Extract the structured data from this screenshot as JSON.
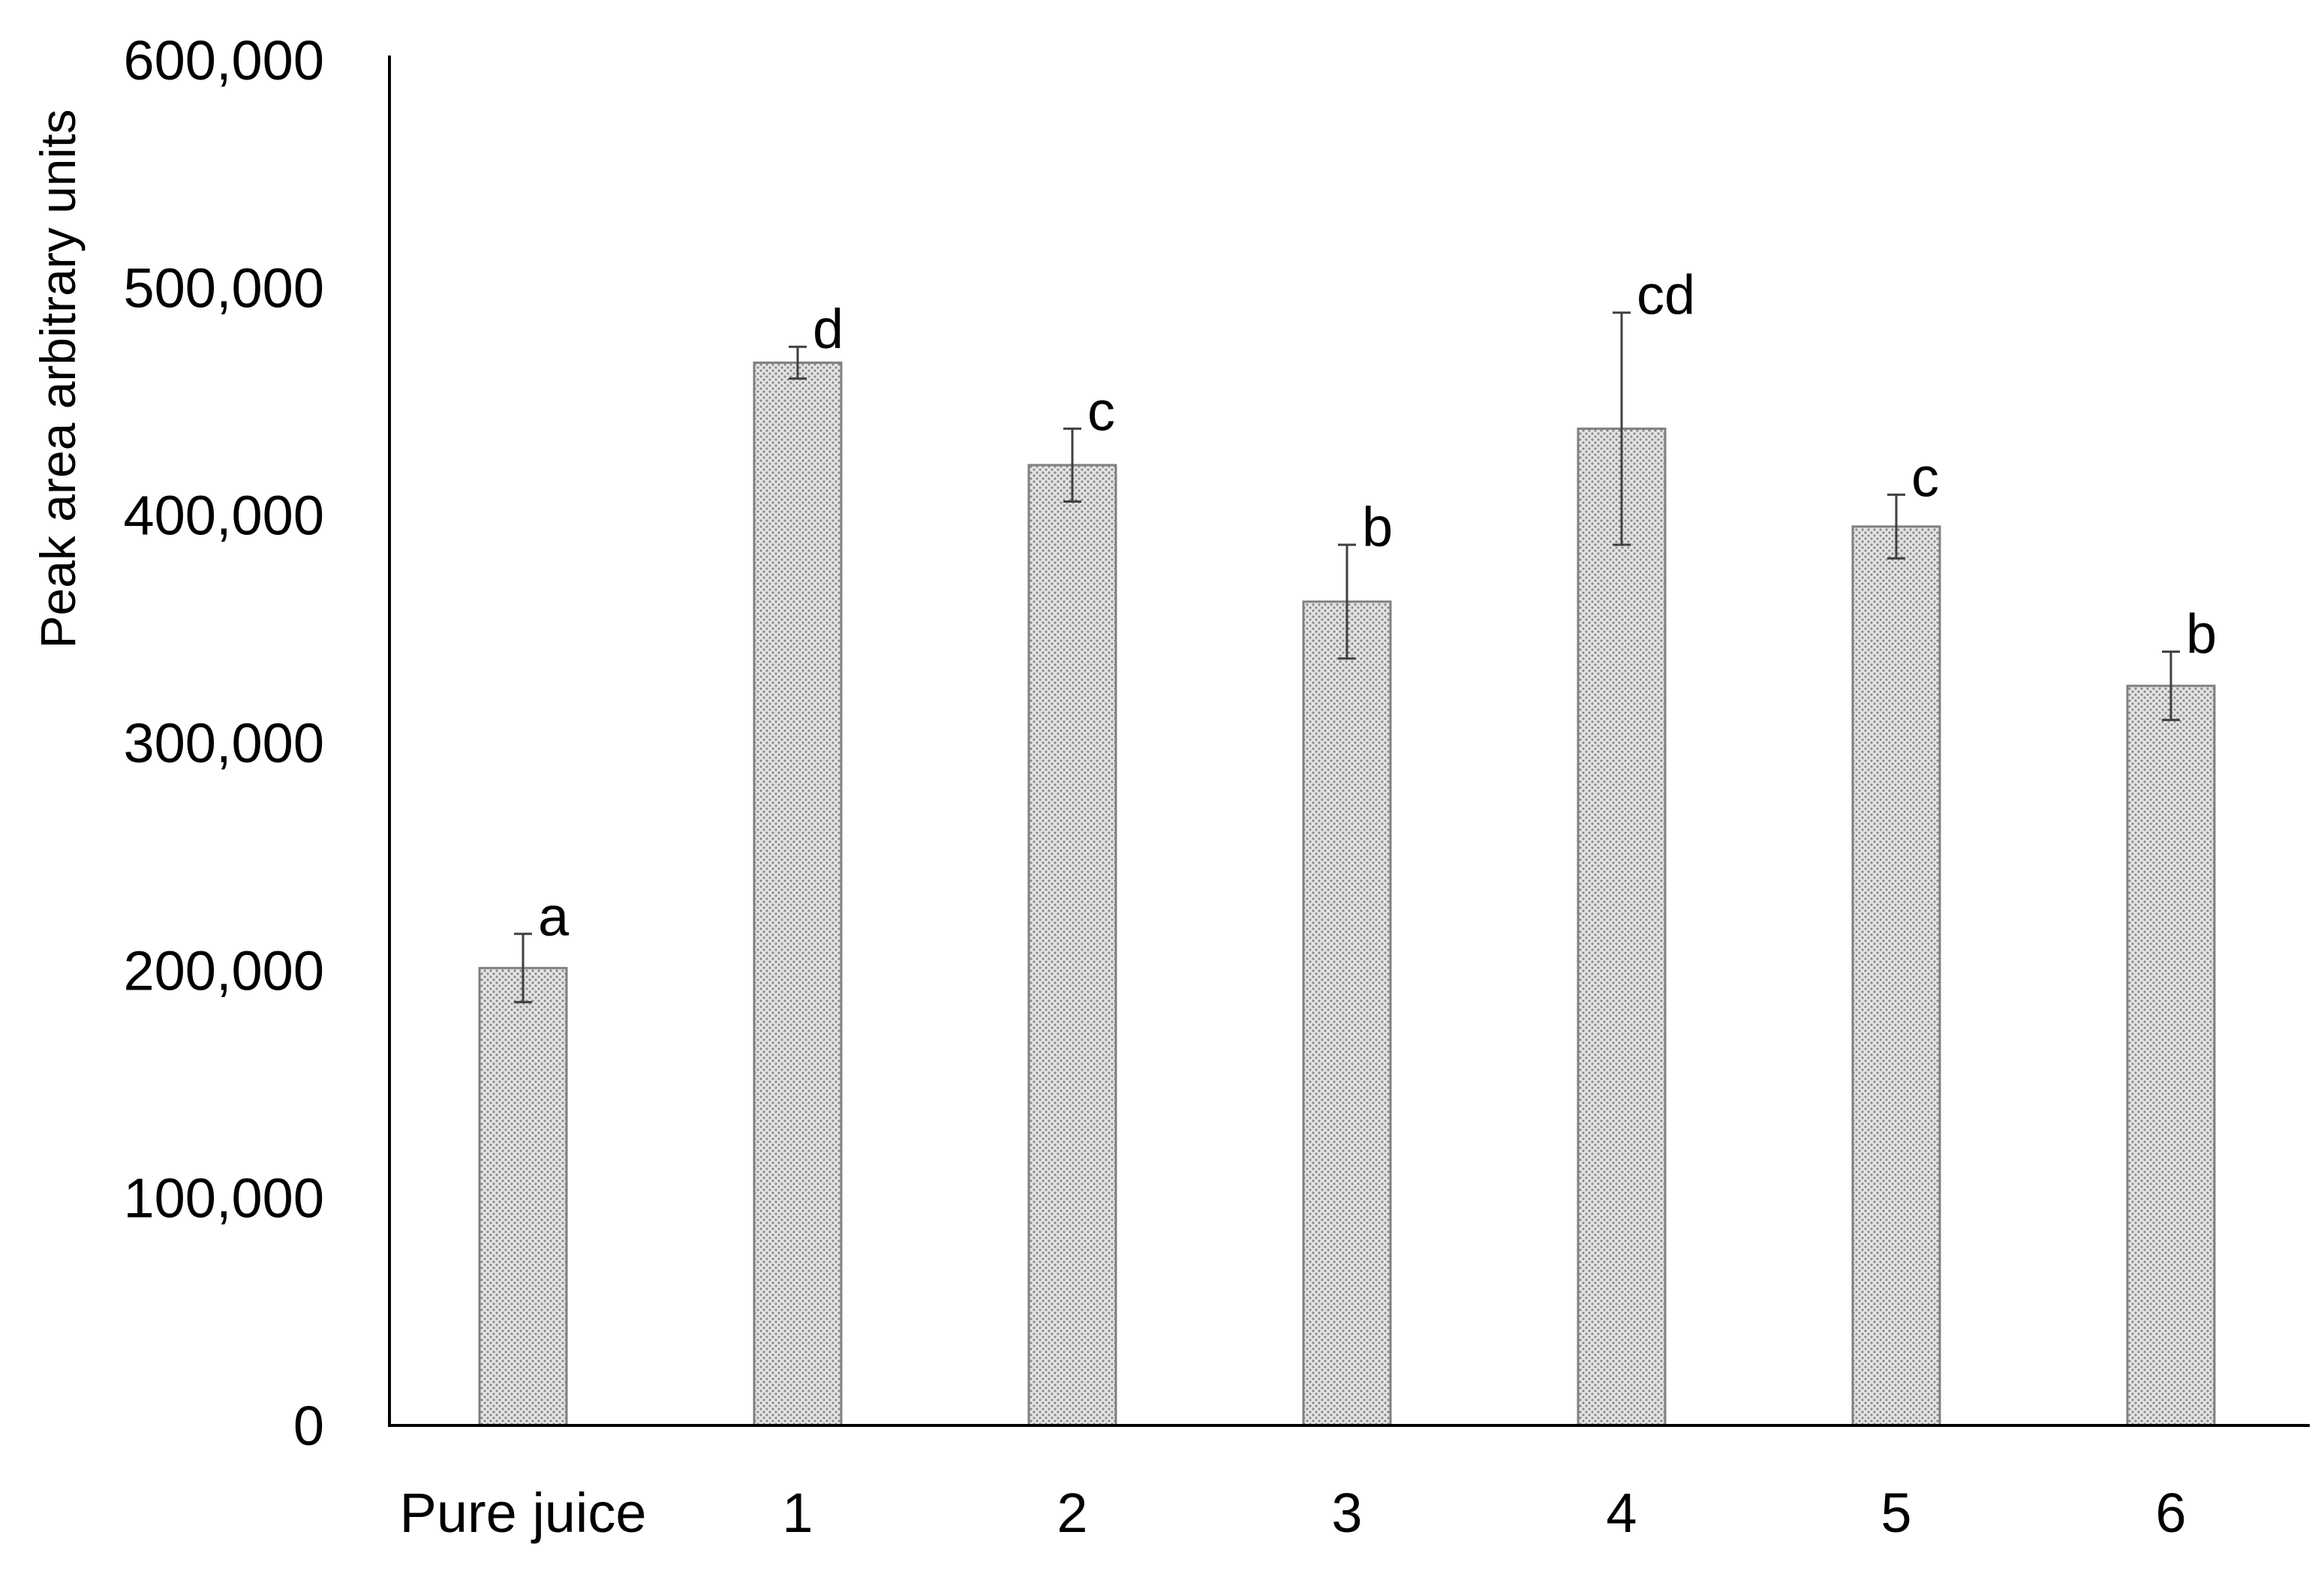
{
  "chart_data": {
    "type": "bar",
    "title": "",
    "xlabel": "",
    "ylabel": "Peak area arbitrary units",
    "ylim": [
      0,
      600000
    ],
    "yticks": [
      0,
      100000,
      200000,
      300000,
      400000,
      500000,
      600000
    ],
    "ytick_labels": [
      "0",
      "100,000",
      "200,000",
      "300,000",
      "400,000",
      "500,000",
      "600,000"
    ],
    "categories": [
      "Pure juice",
      "1",
      "2",
      "3",
      "4",
      "5",
      "6"
    ],
    "values": [
      201000,
      467000,
      422000,
      362000,
      438000,
      395000,
      325000
    ],
    "errors": [
      15000,
      7000,
      16000,
      25000,
      51000,
      14000,
      15000
    ],
    "significance_labels": [
      "a",
      "d",
      "c",
      "b",
      "cd",
      "c",
      "b"
    ],
    "grid": false,
    "legend": "none",
    "colors": {
      "bar_fill": "#c8c8c8",
      "bar_stroke": "#808080",
      "error_bar": "#404040",
      "axis": "#000000"
    }
  }
}
